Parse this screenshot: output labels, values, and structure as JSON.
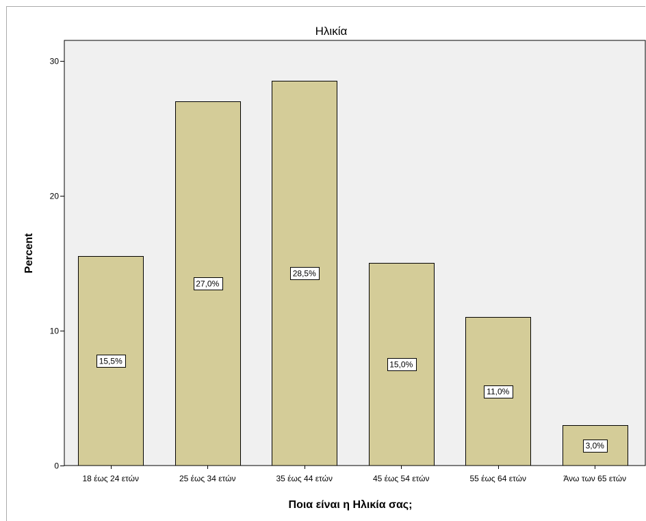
{
  "chart_data": {
    "type": "bar",
    "title": "Ηλικία",
    "xlabel": "Ποια είναι η Ηλικία σας;",
    "ylabel": "Percent",
    "categories": [
      "18 έως 24 ετών",
      "25 έως 34 ετών",
      "35 έως 44 ετών",
      "45 έως 54 ετών",
      "55 έως 64 ετών",
      "Άνω των 65 ετών"
    ],
    "values": [
      15.5,
      27.0,
      28.5,
      15.0,
      11.0,
      3.0
    ],
    "data_labels": [
      "15,5%",
      "27,0%",
      "28,5%",
      "15,0%",
      "11,0%",
      "3,0%"
    ],
    "yticks": [
      0,
      10,
      20,
      30
    ],
    "ylim": [
      0,
      31.5
    ],
    "grid": false,
    "colors": {
      "bar_fill": "#d4cc98",
      "bar_stroke": "#000000",
      "plot_bg": "#f0f0f0"
    }
  }
}
